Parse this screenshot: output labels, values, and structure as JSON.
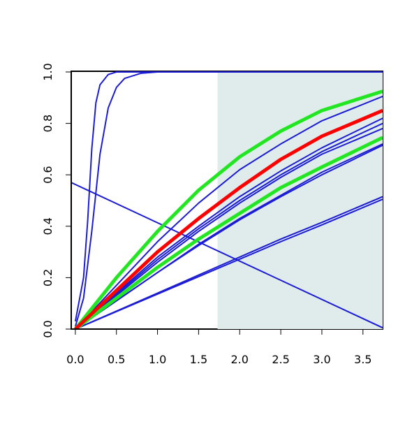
{
  "chart_data": {
    "type": "line",
    "xlim": [
      -0.05,
      3.74
    ],
    "ylim": [
      0,
      1.0
    ],
    "xticks": [
      {
        "value": 0,
        "label": "0.0"
      },
      {
        "value": 0.5,
        "label": "0.5"
      },
      {
        "value": 1,
        "label": "1.0"
      },
      {
        "value": 1.5,
        "label": "1.5"
      },
      {
        "value": 2,
        "label": "2.0"
      },
      {
        "value": 2.5,
        "label": "2.5"
      },
      {
        "value": 3,
        "label": "3.0"
      },
      {
        "value": 3.5,
        "label": "3.5"
      }
    ],
    "yticks": [
      {
        "value": 0,
        "label": "0.0"
      },
      0.2,
      0.4,
      0.6,
      0.8,
      {
        "value": 1,
        "label": "1.0"
      }
    ],
    "shaded_x": [
      1.73,
      3.74
    ],
    "shade_color": "#dfeceb",
    "series": [
      {
        "color": "#1c1cd4",
        "linewidth": 2,
        "x": [
          -0.05,
          3.74
        ],
        "values": [
          0.57,
          0.005
        ]
      },
      {
        "color": "#1c1cd4",
        "linewidth": 2,
        "x": [
          0,
          0.5,
          1,
          1.5,
          2,
          2.5,
          3,
          3.74
        ],
        "values": [
          0,
          0.07,
          0.14,
          0.21,
          0.28,
          0.35,
          0.415,
          0.515
        ]
      },
      {
        "color": "#1c1cd4",
        "linewidth": 2,
        "x": [
          0,
          0.5,
          1,
          1.5,
          2,
          2.5,
          3,
          3.74
        ],
        "values": [
          0,
          0.068,
          0.136,
          0.204,
          0.272,
          0.34,
          0.405,
          0.505
        ]
      },
      {
        "color": "#1c1cd4",
        "linewidth": 2,
        "x": [
          0,
          0.5,
          1,
          1.5,
          2,
          2.5,
          3,
          3.74
        ],
        "values": [
          0,
          0.11,
          0.22,
          0.33,
          0.43,
          0.52,
          0.61,
          0.72
        ]
      },
      {
        "color": "#1c1cd4",
        "linewidth": 2,
        "x": [
          0,
          0.5,
          1,
          1.5,
          2,
          2.5,
          3,
          3.74
        ],
        "values": [
          0,
          0.11,
          0.22,
          0.325,
          0.425,
          0.515,
          0.6,
          0.715
        ]
      },
      {
        "color": "#1c1cd4",
        "linewidth": 2,
        "x": [
          0,
          0.5,
          1,
          1.5,
          2,
          2.5,
          3,
          3.74
        ],
        "values": [
          0,
          0.13,
          0.26,
          0.38,
          0.49,
          0.59,
          0.68,
          0.78
        ]
      },
      {
        "color": "#1c1cd4",
        "linewidth": 2,
        "x": [
          0,
          0.5,
          1,
          1.5,
          2,
          2.5,
          3,
          3.74
        ],
        "values": [
          0,
          0.135,
          0.27,
          0.39,
          0.5,
          0.6,
          0.69,
          0.8
        ]
      },
      {
        "color": "#1c1cd4",
        "linewidth": 2,
        "x": [
          0,
          0.5,
          1,
          1.5,
          2,
          2.5,
          3,
          3.74
        ],
        "values": [
          0,
          0.14,
          0.28,
          0.4,
          0.515,
          0.615,
          0.705,
          0.82
        ]
      },
      {
        "color": "#1c1cd4",
        "linewidth": 2,
        "x": [
          0,
          0.5,
          1,
          1.5,
          2,
          2.5,
          3,
          3.74
        ],
        "values": [
          0,
          0.17,
          0.34,
          0.49,
          0.62,
          0.72,
          0.81,
          0.905
        ]
      },
      {
        "color": "#1c1cd4",
        "linewidth": 2,
        "x": [
          0,
          0.1,
          0.15,
          0.2,
          0.25,
          0.3,
          0.4,
          0.5,
          0.7,
          3.74
        ],
        "values": [
          0.03,
          0.2,
          0.42,
          0.7,
          0.88,
          0.95,
          0.99,
          1.0,
          1.0,
          1.0
        ]
      },
      {
        "color": "#1c1cd4",
        "linewidth": 2,
        "x": [
          0,
          0.1,
          0.2,
          0.3,
          0.4,
          0.5,
          0.6,
          0.8,
          1.0,
          3.74
        ],
        "values": [
          0.01,
          0.12,
          0.38,
          0.68,
          0.86,
          0.94,
          0.975,
          0.995,
          1.0,
          1.0
        ]
      },
      {
        "color": "#22e622",
        "linewidth": 5,
        "x": [
          0,
          0.5,
          1,
          1.5,
          2,
          2.5,
          3,
          3.74
        ],
        "values": [
          0,
          0.2,
          0.38,
          0.54,
          0.67,
          0.77,
          0.85,
          0.925
        ]
      },
      {
        "color": "#22e622",
        "linewidth": 5,
        "x": [
          0,
          0.5,
          1,
          1.5,
          2,
          2.5,
          3,
          3.74
        ],
        "values": [
          0,
          0.12,
          0.24,
          0.35,
          0.45,
          0.55,
          0.63,
          0.745
        ]
      },
      {
        "color": "#ff0000",
        "linewidth": 5,
        "x": [
          0,
          0.5,
          1,
          1.5,
          2,
          2.5,
          3,
          3.74
        ],
        "values": [
          0,
          0.15,
          0.3,
          0.43,
          0.55,
          0.66,
          0.75,
          0.85
        ]
      }
    ]
  }
}
